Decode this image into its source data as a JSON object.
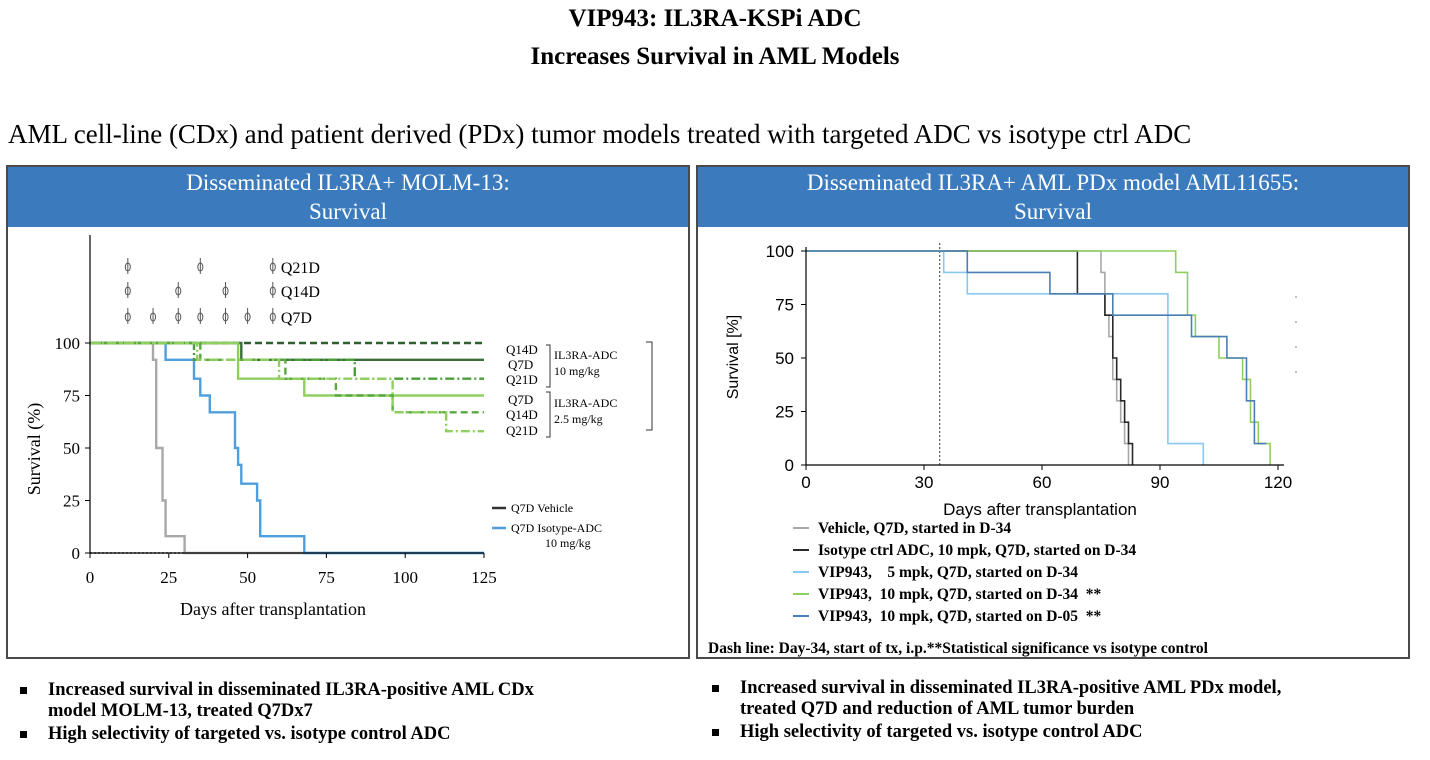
{
  "header": {
    "title_line1": "VIP943: IL3RA-KSPi ADC",
    "title_line2": "Increases Survival in AML Models",
    "subtitle": "AML cell-line (CDx) and patient derived (PDx) tumor models treated with targeted ADC vs isotype ctrl ADC"
  },
  "colors": {
    "panel_header": "#3b7bbd",
    "grey": "#a8a8a8",
    "black": "#2a2a2a",
    "blue": "#4f9fdf",
    "green": "#8fcf5f",
    "dark_green": "#4a9e3a",
    "light_blue": "#87c9f0"
  },
  "left_panel": {
    "header_line1": "Disseminated IL3RA+ MOLM-13:",
    "header_line2": "Survival",
    "dosing": [
      {
        "label": "Q21D",
        "days": [
          12,
          35,
          58
        ]
      },
      {
        "label": "Q14D",
        "days": [
          12,
          28,
          43,
          58
        ]
      },
      {
        "label": "Q7D",
        "days": [
          12,
          20,
          28,
          35,
          43,
          50,
          58
        ]
      }
    ],
    "bracket_labels": {
      "high": [
        "Q14D",
        "Q7D",
        "Q21D"
      ],
      "high_dose_line1": "IL3RA-ADC",
      "high_dose_line2": "10 mg/kg",
      "low": [
        "Q7D",
        "Q14D",
        "Q21D"
      ],
      "low_dose_line1": "IL3RA-ADC",
      "low_dose_line2": "2.5 mg/kg"
    },
    "legend": {
      "vehicle": "Q7D Vehicle",
      "isotype_line1": "Q7D Isotype-ADC",
      "isotype_line2": "10 mg/kg"
    }
  },
  "right_panel": {
    "header_line1": "Disseminated IL3RA+ AML PDx model AML11655:",
    "header_line2": "Survival",
    "legend": [
      {
        "label": "Vehicle, Q7D, started in D-34",
        "color": "#a8a8a8"
      },
      {
        "label": "Isotype ctrl ADC, 10 mpk, Q7D, started on D-34",
        "color": "#2a2a2a"
      },
      {
        "label": "VIP943,    5 mpk, Q7D, started on D-34",
        "color": "#87c9f0"
      },
      {
        "label": "VIP943,  10 mpk, Q7D, started on D-34  **",
        "color": "#8fcf5f"
      },
      {
        "label": "VIP943,  10 mpk, Q7D, started on D-05  **",
        "color": "#4a7fb5"
      }
    ],
    "footnote": "Dash line: Day-34, start of tx, i.p.**Statistical significance vs isotype control"
  },
  "chart_data": [
    {
      "type": "line",
      "xlabel": "Days after transplantation",
      "ylabel": "Survival (%)",
      "xlim": [
        0,
        125
      ],
      "ylim": [
        0,
        100
      ],
      "xticks": [
        "0",
        "25",
        "50",
        "75",
        "100",
        "125"
      ],
      "yticks": [
        "0",
        "25",
        "50",
        "75",
        "100"
      ],
      "series": [
        {
          "name": "Q7D Vehicle",
          "color": "#a8a8a8",
          "style": "solid",
          "points": [
            [
              0,
              100
            ],
            [
              20,
              100
            ],
            [
              20,
              92
            ],
            [
              21,
              92
            ],
            [
              21,
              50
            ],
            [
              23,
              50
            ],
            [
              23,
              25
            ],
            [
              24,
              25
            ],
            [
              24,
              8
            ],
            [
              30,
              8
            ],
            [
              30,
              0
            ],
            [
              125,
              0
            ]
          ]
        },
        {
          "name": "Q7D Isotype-ADC 10 mg/kg",
          "color": "#4f9fdf",
          "style": "solid",
          "points": [
            [
              0,
              100
            ],
            [
              24,
              100
            ],
            [
              24,
              92
            ],
            [
              33,
              92
            ],
            [
              33,
              83
            ],
            [
              35,
              83
            ],
            [
              35,
              75
            ],
            [
              38,
              75
            ],
            [
              38,
              67
            ],
            [
              46,
              67
            ],
            [
              46,
              50
            ],
            [
              47,
              50
            ],
            [
              47,
              42
            ],
            [
              48,
              42
            ],
            [
              48,
              33
            ],
            [
              53,
              33
            ],
            [
              53,
              25
            ],
            [
              54,
              25
            ],
            [
              54,
              8
            ],
            [
              68,
              8
            ],
            [
              68,
              0
            ],
            [
              125,
              0
            ]
          ]
        },
        {
          "color": "#2f5f2f",
          "style": "dashed",
          "points": [
            [
              0,
              100
            ],
            [
              125,
              100
            ]
          ]
        },
        {
          "color": "#3a6e3a",
          "style": "solid",
          "points": [
            [
              0,
              100
            ],
            [
              48,
              100
            ],
            [
              48,
              92
            ],
            [
              125,
              92
            ]
          ]
        },
        {
          "color": "#4a9e3a",
          "style": "dashdot",
          "points": [
            [
              0,
              100
            ],
            [
              33,
              100
            ],
            [
              33,
              92
            ],
            [
              84,
              92
            ],
            [
              84,
              83
            ],
            [
              125,
              83
            ]
          ]
        },
        {
          "color": "#8fcf5f",
          "style": "solid",
          "points": [
            [
              0,
              100
            ],
            [
              47,
              100
            ],
            [
              47,
              83
            ],
            [
              68,
              83
            ],
            [
              68,
              75
            ],
            [
              125,
              75
            ]
          ]
        },
        {
          "color": "#5aa842",
          "style": "dashed",
          "points": [
            [
              0,
              100
            ],
            [
              35,
              100
            ],
            [
              35,
              92
            ],
            [
              62,
              92
            ],
            [
              62,
              83
            ],
            [
              78,
              83
            ],
            [
              78,
              75
            ],
            [
              96,
              75
            ],
            [
              96,
              67
            ],
            [
              125,
              67
            ]
          ]
        },
        {
          "color": "#8fcf5f",
          "style": "dashdot",
          "points": [
            [
              0,
              100
            ],
            [
              34,
              100
            ],
            [
              34,
              92
            ],
            [
              60,
              92
            ],
            [
              60,
              83
            ],
            [
              96,
              83
            ],
            [
              96,
              67
            ],
            [
              113,
              67
            ],
            [
              113,
              58
            ],
            [
              125,
              58
            ]
          ]
        }
      ]
    },
    {
      "type": "line",
      "xlabel": "Days after transplantation",
      "ylabel": "Survival [%]",
      "xlim": [
        0,
        120
      ],
      "ylim": [
        0,
        100
      ],
      "xticks": [
        "0",
        "30",
        "60",
        "90",
        "120"
      ],
      "yticks": [
        "0",
        "25",
        "50",
        "75",
        "100"
      ],
      "vline_day": 34,
      "series": [
        {
          "name": "Vehicle, Q7D, started in D-34",
          "color": "#a8a8a8",
          "points": [
            [
              0,
              100
            ],
            [
              75,
              100
            ],
            [
              75,
              90
            ],
            [
              76,
              90
            ],
            [
              76,
              70
            ],
            [
              77,
              70
            ],
            [
              77,
              60
            ],
            [
              78,
              60
            ],
            [
              78,
              40
            ],
            [
              79,
              40
            ],
            [
              79,
              30
            ],
            [
              80,
              30
            ],
            [
              80,
              20
            ],
            [
              81,
              20
            ],
            [
              81,
              10
            ],
            [
              82,
              10
            ],
            [
              82,
              0
            ]
          ]
        },
        {
          "name": "Isotype ctrl ADC, 10 mpk, Q7D, started on D-34",
          "color": "#2a2a2a",
          "points": [
            [
              0,
              100
            ],
            [
              69,
              100
            ],
            [
              69,
              80
            ],
            [
              76,
              80
            ],
            [
              76,
              70
            ],
            [
              78,
              70
            ],
            [
              78,
              50
            ],
            [
              79,
              50
            ],
            [
              79,
              40
            ],
            [
              80,
              40
            ],
            [
              80,
              30
            ],
            [
              81,
              30
            ],
            [
              81,
              20
            ],
            [
              82,
              20
            ],
            [
              82,
              10
            ],
            [
              83,
              10
            ],
            [
              83,
              0
            ]
          ]
        },
        {
          "name": "VIP943,    5 mpk, Q7D, started on D-34",
          "color": "#87c9f0",
          "points": [
            [
              0,
              100
            ],
            [
              35,
              100
            ],
            [
              35,
              90
            ],
            [
              41,
              90
            ],
            [
              41,
              80
            ],
            [
              92,
              80
            ],
            [
              92,
              10
            ],
            [
              101,
              10
            ],
            [
              101,
              0
            ]
          ]
        },
        {
          "name": "VIP943,  10 mpk, Q7D, started on D-34  **",
          "color": "#8fcf5f",
          "points": [
            [
              0,
              100
            ],
            [
              94,
              100
            ],
            [
              94,
              90
            ],
            [
              97,
              90
            ],
            [
              97,
              70
            ],
            [
              99,
              70
            ],
            [
              99,
              60
            ],
            [
              105,
              60
            ],
            [
              105,
              50
            ],
            [
              111,
              50
            ],
            [
              111,
              40
            ],
            [
              113,
              40
            ],
            [
              113,
              20
            ],
            [
              115,
              20
            ],
            [
              115,
              10
            ],
            [
              118,
              10
            ],
            [
              118,
              0
            ]
          ]
        },
        {
          "name": "VIP943,  10 mpk, Q7D, started on D-05  **",
          "color": "#4a7fb5",
          "points": [
            [
              0,
              100
            ],
            [
              41,
              100
            ],
            [
              41,
              90
            ],
            [
              62,
              90
            ],
            [
              62,
              80
            ],
            [
              78,
              80
            ],
            [
              78,
              70
            ],
            [
              98,
              70
            ],
            [
              98,
              60
            ],
            [
              107,
              60
            ],
            [
              107,
              50
            ],
            [
              112,
              50
            ],
            [
              112,
              30
            ],
            [
              114,
              30
            ],
            [
              114,
              10
            ],
            [
              117,
              10
            ]
          ]
        }
      ]
    }
  ],
  "bullets_left": [
    {
      "line1": "Increased survival in disseminated IL3RA-positive AML CDx",
      "line2": "model MOLM-13, treated Q7Dx7"
    },
    {
      "line1": "High selectivity of targeted vs. isotype control ADC",
      "line2": ""
    }
  ],
  "bullets_right": [
    {
      "line1": "Increased survival in disseminated IL3RA-positive AML PDx model,",
      "line2": "treated Q7D and reduction of AML tumor burden"
    },
    {
      "line1": "High selectivity of targeted vs. isotype control ADC",
      "line2": ""
    }
  ]
}
